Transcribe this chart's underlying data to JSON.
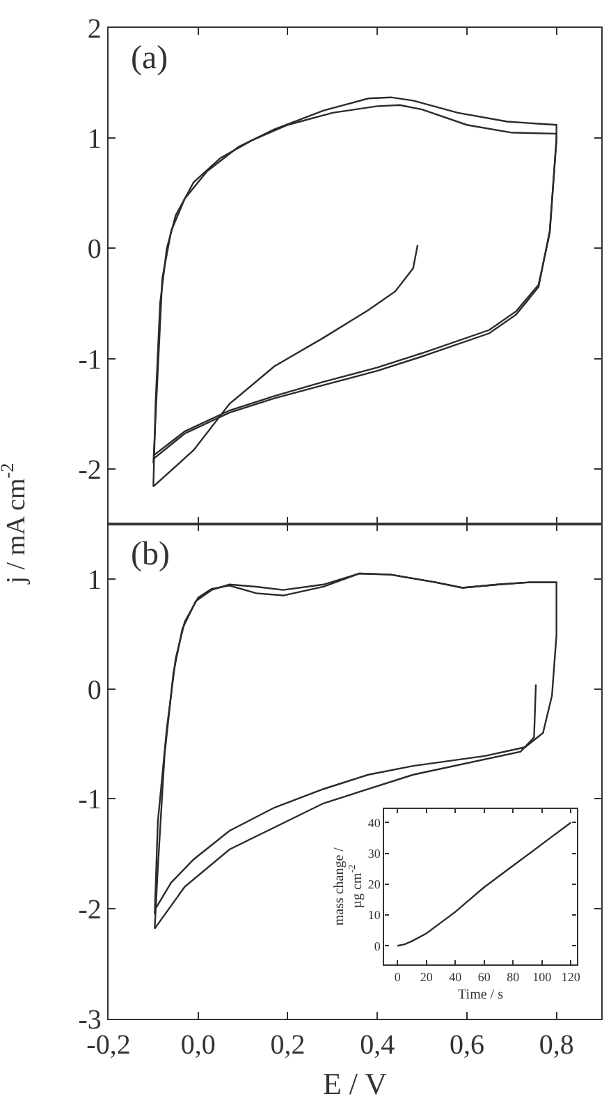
{
  "chart_data": [
    {
      "type": "line",
      "annotations": [
        "(a)"
      ],
      "ylabel": "j / mA cm$^{-2}$",
      "xlim": [
        -0.2,
        0.9
      ],
      "xticks": [
        {
          "value": -0.2,
          "label": null
        },
        {
          "value": 0.0,
          "label": null
        },
        {
          "value": 0.2,
          "label": null
        },
        {
          "value": 0.4,
          "label": null
        },
        {
          "value": 0.6,
          "label": null
        },
        {
          "value": 0.8,
          "label": null
        }
      ],
      "ylim": [
        -2.5,
        2
      ],
      "yticks": [
        -2,
        -1,
        0,
        1,
        2
      ],
      "tick_labels": "y",
      "marker": "none",
      "line_style": "solid",
      "series": [
        {
          "color": "#2b2b2b",
          "x": [
            0.49,
            0.48,
            0.44,
            0.38,
            0.28,
            0.17,
            0.07,
            -0.01,
            -0.1,
            -0.095,
            -0.085,
            -0.07,
            -0.05,
            -0.01,
            0.05,
            0.12,
            0.2,
            0.3,
            0.4,
            0.45,
            0.5,
            0.6,
            0.7,
            0.8,
            0.8,
            0.785,
            0.76,
            0.71,
            0.65,
            0.5,
            0.4,
            0.28,
            0.17,
            0.07,
            -0.03,
            -0.1
          ],
          "values": [
            0.03,
            -0.18,
            -0.39,
            -0.56,
            -0.81,
            -1.07,
            -1.41,
            -1.83,
            -2.16,
            -1.4,
            -0.5,
            0.0,
            0.3,
            0.6,
            0.82,
            0.98,
            1.12,
            1.23,
            1.29,
            1.3,
            1.26,
            1.12,
            1.05,
            1.04,
            0.99,
            0.14,
            -0.33,
            -0.57,
            -0.74,
            -0.95,
            -1.08,
            -1.21,
            -1.34,
            -1.47,
            -1.66,
            -1.88
          ]
        },
        {
          "color": "#2b2b2b",
          "x": [
            -0.1,
            -0.09,
            -0.08,
            -0.06,
            -0.03,
            0.02,
            0.09,
            0.17,
            0.28,
            0.38,
            0.43,
            0.48,
            0.58,
            0.69,
            0.8,
            0.8,
            0.785,
            0.76,
            0.71,
            0.65,
            0.5,
            0.4,
            0.28,
            0.17,
            0.07,
            -0.03,
            -0.1
          ],
          "values": [
            -1.95,
            -1.11,
            -0.27,
            0.16,
            0.45,
            0.7,
            0.92,
            1.08,
            1.25,
            1.36,
            1.37,
            1.34,
            1.23,
            1.15,
            1.12,
            0.99,
            0.16,
            -0.35,
            -0.6,
            -0.77,
            -0.98,
            -1.11,
            -1.24,
            -1.36,
            -1.49,
            -1.68,
            -1.91
          ]
        }
      ]
    },
    {
      "type": "line",
      "annotations": [
        "(b)"
      ],
      "xlabel": "E / V",
      "xlim": [
        -0.2,
        0.9
      ],
      "xticks": [
        {
          "value": -0.2,
          "label": "-0,2"
        },
        {
          "value": 0.0,
          "label": "0,0"
        },
        {
          "value": 0.2,
          "label": "0,2"
        },
        {
          "value": 0.4,
          "label": "0,4"
        },
        {
          "value": 0.6,
          "label": "0,6"
        },
        {
          "value": 0.8,
          "label": "0,8"
        }
      ],
      "ylim": [
        -3,
        1.5
      ],
      "yticks": [
        -3,
        -2,
        -1,
        0,
        1
      ],
      "marker": "none",
      "line_style": "solid",
      "series": [
        {
          "color": "#2b2b2b",
          "x": [
            0.754,
            0.75,
            0.72,
            0.48,
            0.28,
            0.07,
            -0.03,
            -0.097,
            -0.09,
            -0.075,
            -0.055,
            -0.035,
            -0.005,
            0.03,
            0.07,
            0.13,
            0.19,
            0.28,
            0.36,
            0.43,
            0.53,
            0.59,
            0.67,
            0.74,
            0.8
          ],
          "values": [
            0.04,
            -0.44,
            -0.57,
            -0.78,
            -1.04,
            -1.46,
            -1.8,
            -2.18,
            -1.63,
            -0.6,
            0.15,
            0.55,
            0.8,
            0.9,
            0.95,
            0.93,
            0.9,
            0.95,
            1.05,
            1.04,
            0.97,
            0.92,
            0.95,
            0.97,
            0.97
          ]
        },
        {
          "color": "#2b2b2b",
          "x": [
            -0.097,
            -0.09,
            -0.07,
            -0.05,
            -0.03,
            0.0,
            0.03,
            0.07,
            0.13,
            0.19,
            0.28,
            0.36,
            0.43,
            0.53,
            0.59,
            0.67,
            0.74,
            0.8,
            0.8,
            0.79,
            0.77,
            0.73,
            0.64,
            0.48,
            0.38,
            0.28,
            0.17,
            0.07,
            -0.01,
            -0.06,
            -0.097
          ],
          "values": [
            -2.05,
            -1.21,
            -0.36,
            0.28,
            0.61,
            0.83,
            0.91,
            0.94,
            0.87,
            0.85,
            0.93,
            1.05,
            1.04,
            0.97,
            0.92,
            0.95,
            0.97,
            0.97,
            0.49,
            -0.06,
            -0.4,
            -0.53,
            -0.61,
            -0.7,
            -0.78,
            -0.91,
            -1.08,
            -1.29,
            -1.55,
            -1.76,
            -2.01
          ]
        }
      ]
    },
    {
      "type": "line",
      "xlabel": "Time / s",
      "ylabel": "mass change /\nµg cm$^{-2}$",
      "xlim": [
        -9,
        124
      ],
      "xticks": [
        0,
        20,
        40,
        60,
        80,
        100,
        120
      ],
      "ylim": [
        -6,
        44.5
      ],
      "yticks": [
        0,
        10,
        20,
        30,
        40
      ],
      "marker": "none",
      "line_style": "solid",
      "series": [
        {
          "color": "#2b2b2b",
          "x": [
            0,
            5,
            10,
            20,
            30,
            40,
            50,
            60,
            70,
            80,
            90,
            100,
            110,
            120
          ],
          "values": [
            0,
            0.5,
            1.5,
            4,
            7.5,
            11,
            15,
            19,
            22.5,
            26,
            29.5,
            33,
            36.5,
            40
          ]
        }
      ]
    }
  ]
}
